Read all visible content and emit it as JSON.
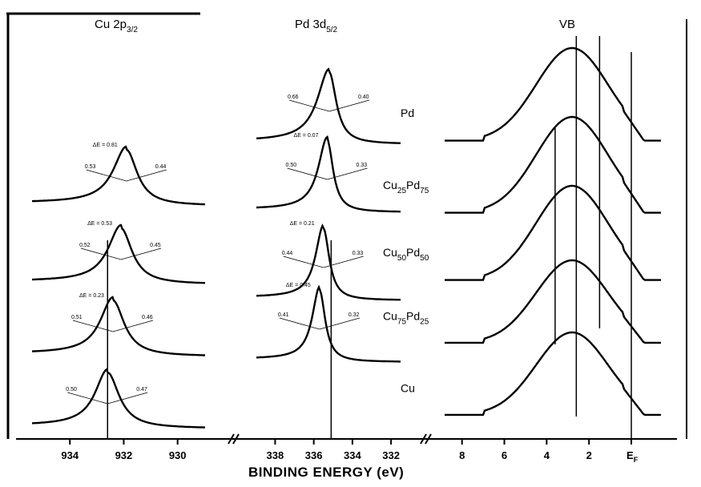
{
  "chart_data": [
    {
      "type": "line",
      "title": "Cu 2p3/2",
      "title_main": "Cu 2p",
      "title_sub": "3/2",
      "xlabel": "BINDING ENERGY (eV)",
      "x_ticks": [
        "934",
        "932",
        "930"
      ],
      "xlim": [
        936,
        928.8
      ],
      "reversed_x": true,
      "series": [
        {
          "offset": 4,
          "center": 931.9,
          "fwhm_left": 0.53,
          "fwhm_right": 0.44,
          "annotations": [
            "0.53",
            "0.44",
            "ΔE = 0.81"
          ]
        },
        {
          "offset": 3,
          "center": 932.1,
          "fwhm_left": 0.52,
          "fwhm_right": 0.45,
          "annotations": [
            "0.52",
            "0.45",
            "ΔE = 0.53"
          ]
        },
        {
          "offset": 2,
          "center": 932.4,
          "fwhm_left": 0.51,
          "fwhm_right": 0.46,
          "annotations": [
            "0.51",
            "0.46",
            "ΔE = 0.23"
          ]
        },
        {
          "offset": 1,
          "center": 932.6,
          "fwhm_left": 0.5,
          "fwhm_right": 0.47,
          "annotations": [
            "0.50",
            "0.47"
          ]
        }
      ],
      "reference_line_x": 932.6
    },
    {
      "type": "line",
      "title": "Pd 3d5/2",
      "title_main": "Pd 3d",
      "title_sub": "5/2",
      "x_ticks": [
        "338",
        "336",
        "334",
        "332"
      ],
      "xlim": [
        339.8,
        331.3
      ],
      "reversed_x": true,
      "series": [
        {
          "offset": 4,
          "center": 335.2,
          "fwhm_left": 0.66,
          "fwhm_right": 0.4,
          "annotations": [
            "0.66",
            "0.40"
          ]
        },
        {
          "offset": 3,
          "center": 335.3,
          "fwhm_left": 0.5,
          "fwhm_right": 0.33,
          "annotations": [
            "0.50",
            "0.33",
            "ΔE = 0.07"
          ]
        },
        {
          "offset": 2,
          "center": 335.5,
          "fwhm_left": 0.44,
          "fwhm_right": 0.33,
          "annotations": [
            "0.44",
            "0.33",
            "ΔE = 0.21"
          ]
        },
        {
          "offset": 1,
          "center": 335.7,
          "fwhm_left": 0.41,
          "fwhm_right": 0.32,
          "annotations": [
            "0.41",
            "0.32",
            "ΔE = 0.45"
          ]
        }
      ],
      "reference_line_x": 335.1
    },
    {
      "type": "line",
      "title": "VB",
      "x_ticks": [
        "8",
        "6",
        "4",
        "2",
        "E_F"
      ],
      "x_tick_values": [
        8,
        6,
        4,
        2,
        0
      ],
      "ef_main": "E",
      "ef_sub": "F",
      "xlim": [
        9.2,
        -1.4
      ],
      "reversed_x": true,
      "series": [
        {
          "name": "Pd",
          "offset": 5
        },
        {
          "name": "Cu25Pd75",
          "name_parts": [
            "Cu",
            "25",
            "Pd",
            "75"
          ],
          "offset": 4
        },
        {
          "name": "Cu50Pd50",
          "name_parts": [
            "Cu",
            "50",
            "Pd",
            "50"
          ],
          "offset": 3
        },
        {
          "name": "Cu75Pd25",
          "name_parts": [
            "Cu",
            "75",
            "Pd",
            "25"
          ],
          "offset": 2
        },
        {
          "name": "Cu",
          "offset": 1
        }
      ],
      "reference_lines_x": [
        3.6,
        2.6,
        1.5,
        0
      ]
    }
  ]
}
